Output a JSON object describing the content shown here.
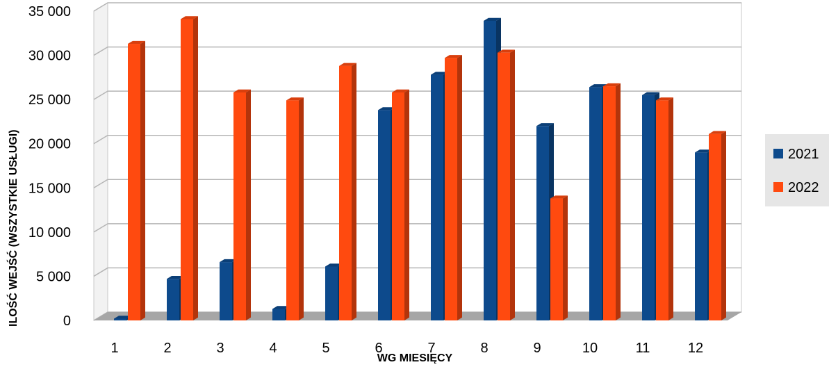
{
  "chart_data": {
    "type": "bar",
    "title": "",
    "xlabel": "WG MIESIĘCY",
    "ylabel": "ILOŚĆ WEJŚĆ (WSZYSTKIE USŁUGI)",
    "categories": [
      "1",
      "2",
      "3",
      "4",
      "5",
      "6",
      "7",
      "8",
      "9",
      "10",
      "11",
      "12"
    ],
    "yticks": [
      "0",
      "5 000",
      "10 000",
      "15 000",
      "20 000",
      "25 000",
      "30 000",
      "35 000"
    ],
    "ylim": [
      0,
      35000
    ],
    "grid": true,
    "legend_position": "right",
    "series": [
      {
        "name": "2021",
        "color": "#0d4a8c",
        "values": [
          200,
          4700,
          6600,
          1300,
          6100,
          23800,
          27800,
          33900,
          22000,
          26400,
          25500,
          19000
        ]
      },
      {
        "name": "2022",
        "color": "#ff4a0f",
        "values": [
          31300,
          34100,
          25800,
          24900,
          28800,
          25800,
          29700,
          30300,
          13800,
          26500,
          24900,
          21100
        ]
      }
    ]
  }
}
